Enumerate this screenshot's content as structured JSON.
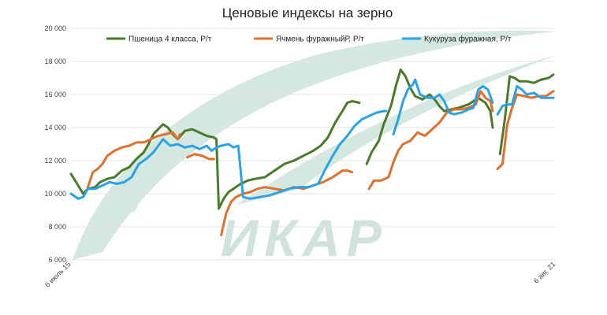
{
  "chart_data": {
    "type": "line",
    "title": "Ценовые индексы на зерно",
    "watermark": "ИКАР",
    "ylim": [
      6000,
      20000
    ],
    "yticks": [
      6000,
      8000,
      10000,
      12000,
      14000,
      16000,
      18000,
      20000
    ],
    "ytick_labels": [
      "6 000",
      "8 000",
      "10 000",
      "12 000",
      "14 000",
      "16 000",
      "18 000",
      "20 000"
    ],
    "xlim": [
      0,
      100
    ],
    "xtick_labels": [
      {
        "x": 0,
        "label": "6 июль 15"
      },
      {
        "x": 100,
        "label": "6 авг. 21"
      }
    ],
    "legend_position": "top",
    "grid": true,
    "series": [
      {
        "name": "Пшеница 4 класса, Р/т",
        "color": "#4a7a2c",
        "segments": [
          [
            [
              0,
              11200
            ],
            [
              1.5,
              10500
            ],
            [
              2.5,
              10000
            ],
            [
              3.5,
              10300
            ],
            [
              5,
              10400
            ],
            [
              6,
              10700
            ],
            [
              7.5,
              10900
            ],
            [
              9,
              11000
            ],
            [
              10.5,
              11400
            ],
            [
              12,
              11600
            ],
            [
              13.5,
              12100
            ],
            [
              15,
              12500
            ],
            [
              16,
              13000
            ],
            [
              17,
              13600
            ],
            [
              18,
              13900
            ],
            [
              19,
              14200
            ],
            [
              20,
              14000
            ],
            [
              21,
              13600
            ],
            [
              22,
              13300
            ],
            [
              23.5,
              13800
            ],
            [
              25,
              13900
            ],
            [
              26.5,
              13700
            ],
            [
              28,
              13500
            ],
            [
              29.5,
              13400
            ],
            [
              30,
              13300
            ],
            [
              30.5,
              9100
            ],
            [
              31.5,
              9700
            ],
            [
              32.5,
              10100
            ],
            [
              34,
              10400
            ],
            [
              35,
              10600
            ],
            [
              36.5,
              10800
            ],
            [
              38,
              10900
            ],
            [
              40,
              11000
            ],
            [
              42,
              11400
            ],
            [
              44,
              11800
            ],
            [
              46,
              12000
            ],
            [
              48,
              12300
            ],
            [
              50,
              12600
            ],
            [
              51.5,
              12900
            ],
            [
              53,
              13400
            ],
            [
              54.5,
              14300
            ],
            [
              56,
              15000
            ],
            [
              57,
              15500
            ],
            [
              58,
              15600
            ],
            [
              59.5,
              15500
            ]
          ],
          [
            [
              61,
              11800
            ],
            [
              62,
              12500
            ],
            [
              63.5,
              13200
            ],
            [
              64.5,
              14200
            ],
            [
              66,
              15300
            ],
            [
              67,
              16500
            ],
            [
              68,
              17500
            ],
            [
              69,
              17100
            ],
            [
              70,
              16400
            ],
            [
              71,
              15900
            ],
            [
              72.5,
              15700
            ],
            [
              74,
              16000
            ],
            [
              75,
              15700
            ],
            [
              76,
              15300
            ],
            [
              77,
              15000
            ],
            [
              78.5,
              15100
            ],
            [
              80,
              15200
            ],
            [
              82,
              15400
            ],
            [
              84,
              15800
            ],
            [
              85.5,
              15500
            ],
            [
              86.5,
              15000
            ],
            [
              87,
              14000
            ]
          ],
          [
            [
              88.5,
              12400
            ],
            [
              89.5,
              14500
            ],
            [
              90.5,
              17100
            ],
            [
              91.5,
              17000
            ],
            [
              92.5,
              16800
            ],
            [
              94,
              16800
            ],
            [
              95.5,
              16700
            ],
            [
              97,
              16900
            ],
            [
              98.5,
              17000
            ],
            [
              99.5,
              17200
            ]
          ]
        ]
      },
      {
        "name": "Ячмень фуражныйР, Р/т",
        "color": "#e0702d",
        "segments": [
          [
            [
              3.5,
              10400
            ],
            [
              4.5,
              11300
            ],
            [
              5.5,
              11500
            ],
            [
              6.5,
              11800
            ],
            [
              7.5,
              12300
            ],
            [
              9,
              12600
            ],
            [
              10.5,
              12800
            ],
            [
              12,
              12900
            ],
            [
              13.5,
              13100
            ],
            [
              15,
              13100
            ],
            [
              16.5,
              13300
            ],
            [
              18,
              13500
            ],
            [
              19.5,
              13600
            ],
            [
              21,
              13700
            ],
            [
              22,
              13300
            ],
            [
              22.5,
              13600
            ]
          ],
          [
            [
              24,
              12200
            ],
            [
              25.5,
              12400
            ],
            [
              27,
              12300
            ],
            [
              28.5,
              12100
            ],
            [
              29.5,
              12100
            ]
          ],
          [
            [
              31,
              7500
            ],
            [
              32,
              8800
            ],
            [
              33,
              9500
            ],
            [
              34,
              9800
            ],
            [
              35.5,
              10000
            ],
            [
              37,
              10100
            ],
            [
              38.5,
              10300
            ],
            [
              40,
              10400
            ],
            [
              42,
              10300
            ],
            [
              44,
              10200
            ],
            [
              46,
              10400
            ],
            [
              48,
              10300
            ],
            [
              50,
              10500
            ],
            [
              52,
              10700
            ],
            [
              54,
              11000
            ],
            [
              56,
              11400
            ],
            [
              57,
              11400
            ],
            [
              58,
              11300
            ]
          ],
          [
            [
              61.5,
              10300
            ],
            [
              62.5,
              10800
            ],
            [
              64,
              10800
            ],
            [
              65.5,
              11000
            ],
            [
              66.5,
              11900
            ],
            [
              67.5,
              12600
            ],
            [
              68.5,
              13000
            ],
            [
              70,
              13200
            ],
            [
              71.5,
              13700
            ],
            [
              73,
              13500
            ],
            [
              74.5,
              13900
            ],
            [
              76,
              14300
            ],
            [
              77.5,
              14900
            ],
            [
              79,
              15100
            ],
            [
              80.5,
              15100
            ],
            [
              82,
              15200
            ],
            [
              83.5,
              15400
            ],
            [
              84.5,
              16200
            ],
            [
              85.5,
              15800
            ],
            [
              86.5,
              15600
            ],
            [
              87,
              15000
            ]
          ],
          [
            [
              88,
              11500
            ],
            [
              89,
              11800
            ],
            [
              90,
              14200
            ],
            [
              91,
              15200
            ],
            [
              92,
              16000
            ],
            [
              93.5,
              15900
            ],
            [
              95,
              15800
            ],
            [
              96.5,
              15900
            ],
            [
              98,
              15900
            ],
            [
              99.5,
              16200
            ]
          ]
        ]
      },
      {
        "name": "Кукуруза фуражная, Р/т",
        "color": "#2aa3e6",
        "segments": [
          [
            [
              0,
              10000
            ],
            [
              1.5,
              9700
            ],
            [
              2.5,
              9800
            ],
            [
              3.5,
              10300
            ],
            [
              5,
              10300
            ],
            [
              6.5,
              10500
            ],
            [
              8,
              10700
            ],
            [
              9.5,
              10600
            ],
            [
              11,
              10700
            ],
            [
              12.5,
              11000
            ],
            [
              14,
              11800
            ],
            [
              15.5,
              12100
            ],
            [
              17,
              12500
            ],
            [
              18,
              12900
            ],
            [
              19,
              13300
            ],
            [
              20.5,
              12900
            ],
            [
              22,
              13000
            ],
            [
              23.5,
              12800
            ],
            [
              25,
              12900
            ],
            [
              26.5,
              12700
            ],
            [
              28,
              12900
            ],
            [
              29,
              12600
            ],
            [
              30,
              12800
            ],
            [
              31,
              12900
            ],
            [
              32.5,
              13000
            ],
            [
              33.5,
              12800
            ],
            [
              34.5,
              12900
            ],
            [
              35,
              11400
            ],
            [
              35.5,
              9800
            ],
            [
              37,
              9700
            ],
            [
              39,
              9800
            ],
            [
              41,
              9900
            ],
            [
              43,
              10100
            ],
            [
              45,
              10300
            ],
            [
              47,
              10400
            ],
            [
              49,
              10400
            ],
            [
              51,
              10600
            ],
            [
              52.5,
              11500
            ],
            [
              54,
              12300
            ],
            [
              55.5,
              13000
            ],
            [
              57,
              13500
            ],
            [
              58.5,
              14100
            ],
            [
              60,
              14500
            ],
            [
              61.5,
              14700
            ],
            [
              63,
              14900
            ],
            [
              64.5,
              15000
            ],
            [
              65,
              15000
            ]
          ],
          [
            [
              66.5,
              13600
            ],
            [
              67.5,
              14500
            ],
            [
              68.5,
              15600
            ],
            [
              69.5,
              16300
            ],
            [
              70.5,
              16600
            ],
            [
              71,
              16900
            ],
            [
              72,
              16000
            ],
            [
              73.5,
              15800
            ],
            [
              75,
              15800
            ],
            [
              76,
              16000
            ],
            [
              77,
              15600
            ],
            [
              78,
              14900
            ],
            [
              79,
              14800
            ],
            [
              80.5,
              14900
            ],
            [
              82,
              15100
            ],
            [
              83,
              15200
            ],
            [
              84,
              16300
            ],
            [
              85,
              16500
            ],
            [
              86,
              16300
            ],
            [
              87,
              15500
            ]
          ],
          [
            [
              88,
              14800
            ],
            [
              89,
              15300
            ],
            [
              90,
              15400
            ],
            [
              91,
              15400
            ],
            [
              92,
              16500
            ],
            [
              93,
              16300
            ],
            [
              94,
              16000
            ],
            [
              95.5,
              16100
            ],
            [
              97,
              15800
            ],
            [
              98.5,
              15800
            ],
            [
              99.5,
              15800
            ]
          ]
        ]
      }
    ]
  }
}
